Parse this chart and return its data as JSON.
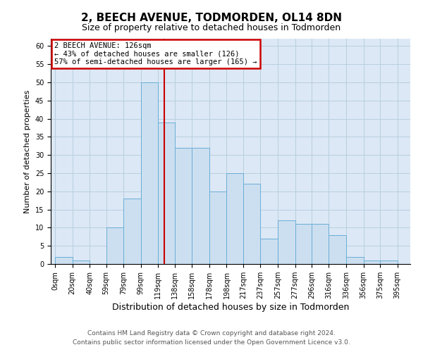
{
  "title1": "2, BEECH AVENUE, TODMORDEN, OL14 8DN",
  "title2": "Size of property relative to detached houses in Todmorden",
  "xlabel": "Distribution of detached houses by size in Todmorden",
  "ylabel": "Number of detached properties",
  "footer1": "Contains HM Land Registry data © Crown copyright and database right 2024.",
  "footer2": "Contains public sector information licensed under the Open Government Licence v3.0.",
  "annotation_line1": "2 BEECH AVENUE: 126sqm",
  "annotation_line2": "← 43% of detached houses are smaller (126)",
  "annotation_line3": "57% of semi-detached houses are larger (165) →",
  "bar_left_edges": [
    0,
    20,
    40,
    59,
    79,
    99,
    119,
    138,
    158,
    178,
    198,
    217,
    237,
    257,
    277,
    296,
    316,
    336,
    356,
    375
  ],
  "bar_widths": [
    20,
    20,
    19,
    20,
    20,
    20,
    19,
    20,
    20,
    20,
    19,
    20,
    20,
    20,
    19,
    20,
    20,
    20,
    19,
    20
  ],
  "bar_heights": [
    2,
    1,
    0,
    10,
    18,
    50,
    39,
    32,
    32,
    20,
    25,
    22,
    7,
    12,
    11,
    11,
    8,
    2,
    1,
    1
  ],
  "tick_labels": [
    "0sqm",
    "20sqm",
    "40sqm",
    "59sqm",
    "79sqm",
    "99sqm",
    "119sqm",
    "138sqm",
    "158sqm",
    "178sqm",
    "198sqm",
    "217sqm",
    "237sqm",
    "257sqm",
    "277sqm",
    "296sqm",
    "316sqm",
    "336sqm",
    "356sqm",
    "375sqm",
    "395sqm"
  ],
  "bar_color": "#ccdff0",
  "bar_edge_color": "#6aaed6",
  "vline_color": "#cc0000",
  "vline_x": 126,
  "ylim": [
    0,
    62
  ],
  "xlim": [
    -5,
    410
  ],
  "yticks": [
    0,
    5,
    10,
    15,
    20,
    25,
    30,
    35,
    40,
    45,
    50,
    55,
    60
  ],
  "annotation_box_edgecolor": "#cc0000",
  "grid_color": "#b8cfe0",
  "bg_color": "#dce8f5",
  "title1_fontsize": 11,
  "title2_fontsize": 9,
  "ylabel_fontsize": 8,
  "xlabel_fontsize": 9,
  "footer_fontsize": 6.5,
  "tick_fontsize": 7
}
